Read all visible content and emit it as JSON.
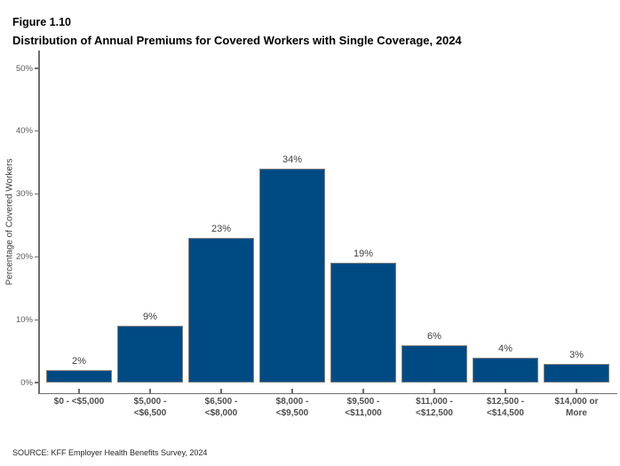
{
  "header": {
    "figure_label": "Figure 1.10",
    "title": "Distribution of Annual Premiums for Covered Workers with Single Coverage, 2024"
  },
  "source": "SOURCE: KFF Employer Health Benefits Survey, 2024",
  "chart_data": {
    "type": "bar",
    "title": "Distribution of Annual Premiums for Covered Workers with Single Coverage, 2024",
    "categories": [
      "$0 - <$5,000",
      "$5,000 -\n<$6,500",
      "$6,500 -\n<$8,000",
      "$8,000 -\n<$9,500",
      "$9,500 -\n<$11,000",
      "$11,000 -\n<$12,500",
      "$12,500 -\n<$14,500",
      "$14,000 or\nMore"
    ],
    "values": [
      2,
      9,
      23,
      34,
      19,
      6,
      4,
      3
    ],
    "data_labels": [
      "2%",
      "9%",
      "23%",
      "34%",
      "19%",
      "6%",
      "4%",
      "3%"
    ],
    "xlabel": "",
    "ylabel": "Percentage of Covered Workers",
    "ylim": [
      0,
      52
    ],
    "yticks": [
      0,
      10,
      20,
      30,
      40,
      50
    ],
    "ytick_labels": [
      "0%",
      "10%",
      "20%",
      "30%",
      "40%",
      "50%"
    ],
    "grid": false,
    "legend": "none",
    "colors": {
      "bar_fill": "#004a84",
      "bar_border": "#808080",
      "axis": "#6e6e6e",
      "tick_label": "#595959",
      "category_label": "#4d4d4d",
      "data_label": "#404040"
    }
  }
}
